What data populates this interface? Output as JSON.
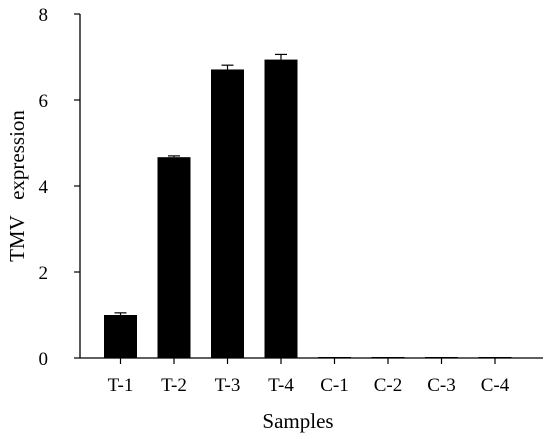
{
  "chart_data": {
    "type": "bar",
    "categories": [
      "T-1",
      "T-2",
      "T-3",
      "T-4",
      "C-1",
      "C-2",
      "C-3",
      "C-4"
    ],
    "values": [
      1.0,
      4.67,
      6.71,
      6.94,
      0.02,
      0.02,
      0.02,
      0.02
    ],
    "errors": [
      0.05,
      0.03,
      0.1,
      0.12,
      0.0,
      0.0,
      0.0,
      0.0
    ],
    "xlabel": "Samples",
    "ylabel": "TMV   expression",
    "ylim": [
      0,
      8
    ],
    "yticks": [
      0,
      2,
      4,
      6,
      8
    ],
    "grid": false,
    "bar_color": "#000000"
  }
}
